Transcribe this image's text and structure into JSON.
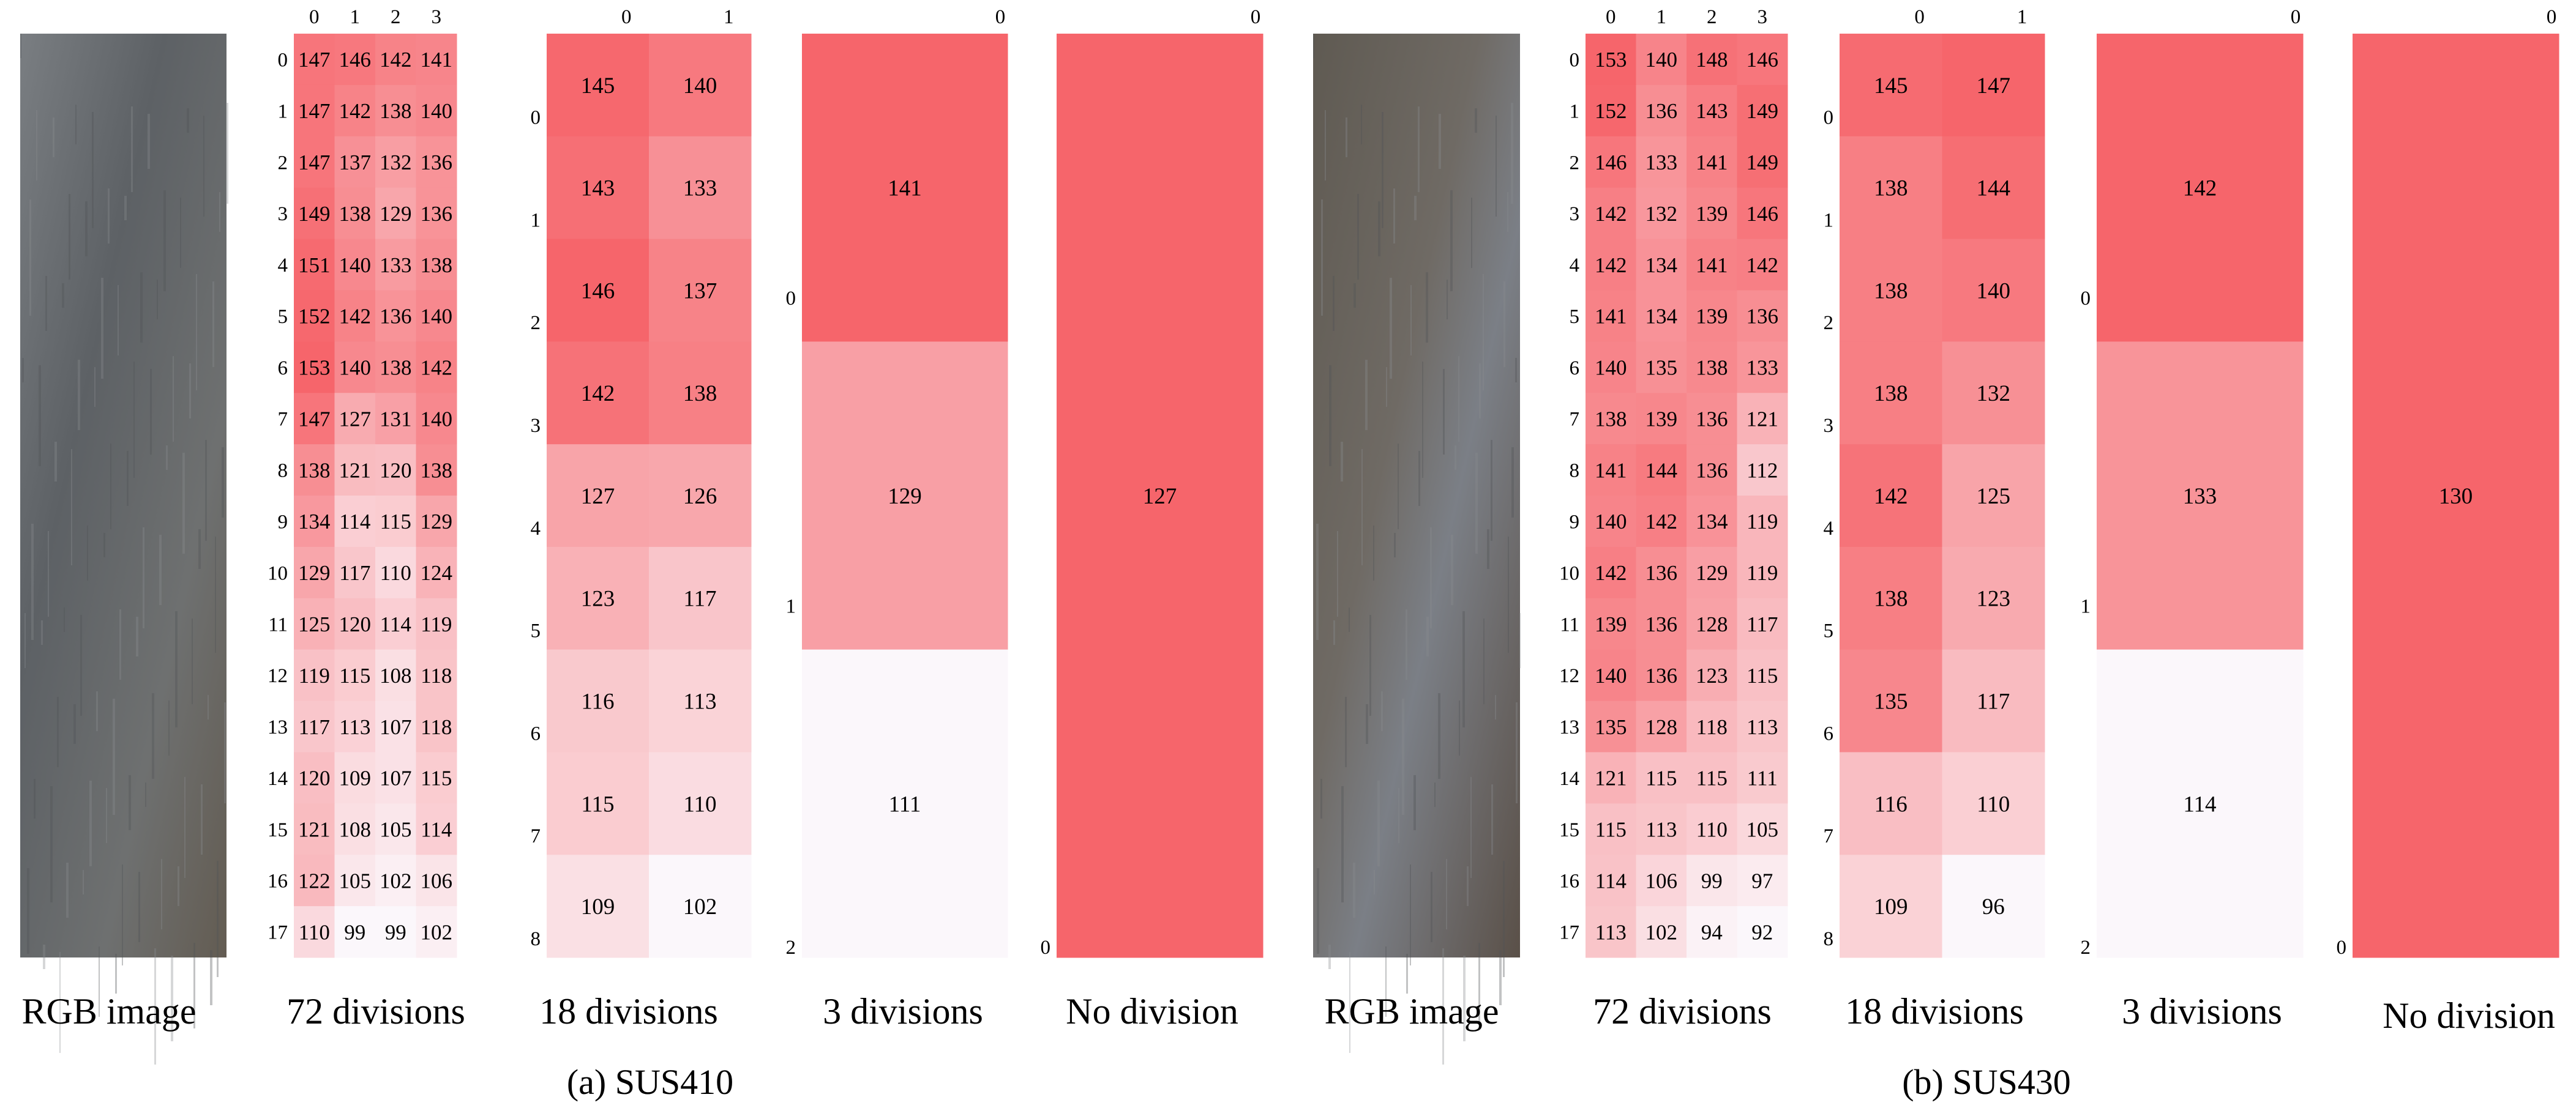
{
  "colors": {
    "max": "#f6656b",
    "min": "#fbf7fb",
    "rgb_sus410": "#6b6f72",
    "rgb_sus430": "#6a625a"
  },
  "chart_data": [
    {
      "type": "heatmap",
      "panel": "(a) SUS410",
      "captions": [
        "RGB image",
        "72 divisions",
        "18 divisions",
        "3 divisions",
        "No division"
      ],
      "heatmaps": [
        {
          "name": "72 divisions",
          "col_labels": [
            "0",
            "1",
            "2",
            "3"
          ],
          "row_labels": [
            "0",
            "1",
            "2",
            "3",
            "4",
            "5",
            "6",
            "7",
            "8",
            "9",
            "10",
            "11",
            "12",
            "13",
            "14",
            "15",
            "16",
            "17"
          ],
          "values": [
            [
              147,
              146,
              142,
              141
            ],
            [
              147,
              142,
              138,
              140
            ],
            [
              147,
              137,
              132,
              136
            ],
            [
              149,
              138,
              129,
              136
            ],
            [
              151,
              140,
              133,
              138
            ],
            [
              152,
              142,
              136,
              140
            ],
            [
              153,
              140,
              138,
              142
            ],
            [
              147,
              127,
              131,
              140
            ],
            [
              138,
              121,
              120,
              138
            ],
            [
              134,
              114,
              115,
              129
            ],
            [
              129,
              117,
              110,
              124
            ],
            [
              125,
              120,
              114,
              119
            ],
            [
              119,
              115,
              108,
              118
            ],
            [
              117,
              113,
              107,
              118
            ],
            [
              120,
              109,
              107,
              115
            ],
            [
              121,
              108,
              105,
              114
            ],
            [
              122,
              105,
              102,
              106
            ],
            [
              110,
              99,
              99,
              102
            ]
          ]
        },
        {
          "name": "18 divisions",
          "col_labels": [
            "0",
            "1"
          ],
          "row_labels": [
            "0",
            "1",
            "2",
            "3",
            "4",
            "5",
            "6",
            "7",
            "8"
          ],
          "values": [
            [
              145,
              140
            ],
            [
              143,
              133
            ],
            [
              146,
              137
            ],
            [
              142,
              138
            ],
            [
              127,
              126
            ],
            [
              123,
              117
            ],
            [
              116,
              113
            ],
            [
              115,
              110
            ],
            [
              109,
              102
            ]
          ]
        },
        {
          "name": "3 divisions",
          "col_labels": [
            "0"
          ],
          "row_labels": [
            "0",
            "1",
            "2"
          ],
          "values": [
            [
              141
            ],
            [
              129
            ],
            [
              111
            ]
          ]
        },
        {
          "name": "No division",
          "col_labels": [
            "0"
          ],
          "row_labels": [
            "0"
          ],
          "values": [
            [
              127
            ]
          ]
        }
      ]
    },
    {
      "type": "heatmap",
      "panel": "(b) SUS430",
      "captions": [
        "RGB image",
        "72 divisions",
        "18 divisions",
        "3 divisions",
        "No division"
      ],
      "heatmaps": [
        {
          "name": "72 divisions",
          "col_labels": [
            "0",
            "1",
            "2",
            "3"
          ],
          "row_labels": [
            "0",
            "1",
            "2",
            "3",
            "4",
            "5",
            "6",
            "7",
            "8",
            "9",
            "10",
            "11",
            "12",
            "13",
            "14",
            "15",
            "16",
            "17"
          ],
          "values": [
            [
              153,
              140,
              148,
              146
            ],
            [
              152,
              136,
              143,
              149
            ],
            [
              146,
              133,
              141,
              149
            ],
            [
              142,
              132,
              139,
              146
            ],
            [
              142,
              134,
              141,
              142
            ],
            [
              141,
              134,
              139,
              136
            ],
            [
              140,
              135,
              138,
              133
            ],
            [
              138,
              139,
              136,
              121
            ],
            [
              141,
              144,
              136,
              112
            ],
            [
              140,
              142,
              134,
              119
            ],
            [
              142,
              136,
              129,
              119
            ],
            [
              139,
              136,
              128,
              117
            ],
            [
              140,
              136,
              123,
              115
            ],
            [
              135,
              128,
              118,
              113
            ],
            [
              121,
              115,
              115,
              111
            ],
            [
              115,
              113,
              110,
              105
            ],
            [
              114,
              106,
              99,
              97
            ],
            [
              113,
              102,
              94,
              92
            ]
          ]
        },
        {
          "name": "18 divisions",
          "col_labels": [
            "0",
            "1"
          ],
          "row_labels": [
            "0",
            "1",
            "2",
            "3",
            "4",
            "5",
            "6",
            "7",
            "8"
          ],
          "values": [
            [
              145,
              147
            ],
            [
              138,
              144
            ],
            [
              138,
              140
            ],
            [
              138,
              132
            ],
            [
              142,
              125
            ],
            [
              138,
              123
            ],
            [
              135,
              117
            ],
            [
              116,
              110
            ],
            [
              109,
              96
            ]
          ]
        },
        {
          "name": "3 divisions",
          "col_labels": [
            "0"
          ],
          "row_labels": [
            "0",
            "1",
            "2"
          ],
          "values": [
            [
              142
            ],
            [
              133
            ],
            [
              114
            ]
          ]
        },
        {
          "name": "No division",
          "col_labels": [
            "0"
          ],
          "row_labels": [
            "0"
          ],
          "values": [
            [
              130
            ]
          ]
        }
      ]
    }
  ]
}
